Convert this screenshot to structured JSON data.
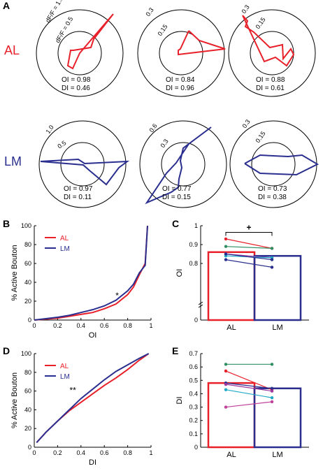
{
  "panel_letters": {
    "a": "A",
    "b": "B",
    "c": "C",
    "d": "D",
    "e": "E"
  },
  "row_labels": {
    "al": "AL",
    "lm": "LM"
  },
  "colors": {
    "AL": "#e8202a",
    "LM": "#2a2f8f",
    "axis": "#000000"
  },
  "polar_plots": [
    {
      "area": "AL",
      "radius_labels": [
        "dF/F = 1.0",
        "dF/F = 0.5"
      ],
      "oi_text": "OI = 0.98",
      "di_text": "DI = 0.46"
    },
    {
      "area": "AL",
      "radius_labels": [
        "0.3",
        "0.15"
      ],
      "oi_text": "OI = 0.84",
      "di_text": "DI = 0.96"
    },
    {
      "area": "AL",
      "radius_labels": [
        "0.3",
        "0.15"
      ],
      "oi_text": "OI = 0.88",
      "di_text": "DI = 0.61"
    },
    {
      "area": "LM",
      "radius_labels": [
        "1.0",
        "0.5"
      ],
      "oi_text": "OI = 0.97",
      "di_text": "DI = 0.11"
    },
    {
      "area": "LM",
      "radius_labels": [
        "0.6",
        "0.3"
      ],
      "oi_text": "OI = 0.77",
      "di_text": "DI = 0.15"
    },
    {
      "area": "LM",
      "radius_labels": [
        "0.3",
        "0.15"
      ],
      "oi_text": "OI = 0.73",
      "di_text": "DI = 0.38"
    }
  ],
  "chart_data": [
    {
      "panel": "B",
      "type": "line",
      "xlabel": "OI",
      "ylabel": "% Active Bouton",
      "xlim": [
        0,
        1
      ],
      "ylim": [
        0,
        100
      ],
      "x_ticks": [
        "0",
        "0.2",
        "0.4",
        "0.6",
        "0.8",
        "1"
      ],
      "y_ticks": [
        "0",
        "20",
        "40",
        "60",
        "80",
        "100"
      ],
      "annotation": "*",
      "series": [
        {
          "name": "AL",
          "x": [
            0,
            0.1,
            0.2,
            0.3,
            0.4,
            0.5,
            0.6,
            0.7,
            0.8,
            0.85,
            0.9,
            0.95,
            0.97
          ],
          "y": [
            0,
            1,
            2,
            4,
            6,
            8,
            12,
            17,
            27,
            35,
            48,
            60,
            100
          ]
        },
        {
          "name": "LM",
          "x": [
            0,
            0.1,
            0.2,
            0.3,
            0.4,
            0.5,
            0.6,
            0.7,
            0.8,
            0.85,
            0.9,
            0.95,
            0.97
          ],
          "y": [
            0,
            1.5,
            3,
            5,
            8,
            11,
            15,
            21,
            31,
            38,
            50,
            58,
            100
          ]
        }
      ]
    },
    {
      "panel": "C",
      "type": "bar",
      "xlabel": "",
      "ylabel": "OI",
      "categories": [
        "AL",
        "LM"
      ],
      "values": [
        0.86,
        0.84
      ],
      "ylim": [
        0,
        1
      ],
      "y_ticks": [
        "0",
        "0.8",
        "0.9",
        "1"
      ],
      "annotation": "+",
      "paired_points": [
        {
          "AL": 0.93,
          "LM": 0.88,
          "color": "#e8202a"
        },
        {
          "AL": 0.89,
          "LM": 0.88,
          "color": "#2f8f62"
        },
        {
          "AL": 0.85,
          "LM": 0.83,
          "color": "#9b3aa0"
        },
        {
          "AL": 0.84,
          "LM": 0.83,
          "color": "#20a8c6"
        },
        {
          "AL": 0.85,
          "LM": 0.82,
          "color": "#2a2f8f"
        },
        {
          "AL": 0.82,
          "LM": 0.78,
          "color": "#2a2f8f"
        }
      ]
    },
    {
      "panel": "D",
      "type": "line",
      "xlabel": "DI",
      "ylabel": "% Active Bouton",
      "xlim": [
        0,
        1
      ],
      "ylim": [
        0,
        100
      ],
      "x_ticks": [
        "0",
        "0.2",
        "0.4",
        "0.6",
        "0.8",
        "1"
      ],
      "y_ticks": [
        "0",
        "20",
        "40",
        "60",
        "80",
        "100"
      ],
      "annotation": "**",
      "series": [
        {
          "name": "AL",
          "x": [
            0.02,
            0.1,
            0.2,
            0.3,
            0.4,
            0.5,
            0.6,
            0.7,
            0.8,
            0.9,
            0.98
          ],
          "y": [
            5,
            16,
            28,
            39,
            48,
            57,
            66,
            74,
            83,
            93,
            100
          ]
        },
        {
          "name": "LM",
          "x": [
            0.02,
            0.1,
            0.2,
            0.3,
            0.4,
            0.5,
            0.6,
            0.7,
            0.8,
            0.9,
            0.98
          ],
          "y": [
            5,
            16,
            28,
            40,
            52,
            62,
            72,
            81,
            88,
            95,
            100
          ]
        }
      ]
    },
    {
      "panel": "E",
      "type": "bar",
      "xlabel": "",
      "ylabel": "DI",
      "categories": [
        "AL",
        "LM"
      ],
      "values": [
        0.48,
        0.44
      ],
      "ylim": [
        0,
        0.7
      ],
      "y_ticks": [
        "0",
        "0.1",
        "0.2",
        "0.3",
        "0.4",
        "0.5",
        "0.6",
        "0.7"
      ],
      "paired_points": [
        {
          "AL": 0.62,
          "LM": 0.62,
          "color": "#2f8f62"
        },
        {
          "AL": 0.57,
          "LM": 0.43,
          "color": "#e8202a"
        },
        {
          "AL": 0.48,
          "LM": 0.44,
          "color": "#2a2f8f"
        },
        {
          "AL": 0.47,
          "LM": 0.42,
          "color": "#9b3aa0"
        },
        {
          "AL": 0.43,
          "LM": 0.37,
          "color": "#20a8c6"
        },
        {
          "AL": 0.3,
          "LM": 0.34,
          "color": "#c0409a"
        }
      ]
    }
  ]
}
